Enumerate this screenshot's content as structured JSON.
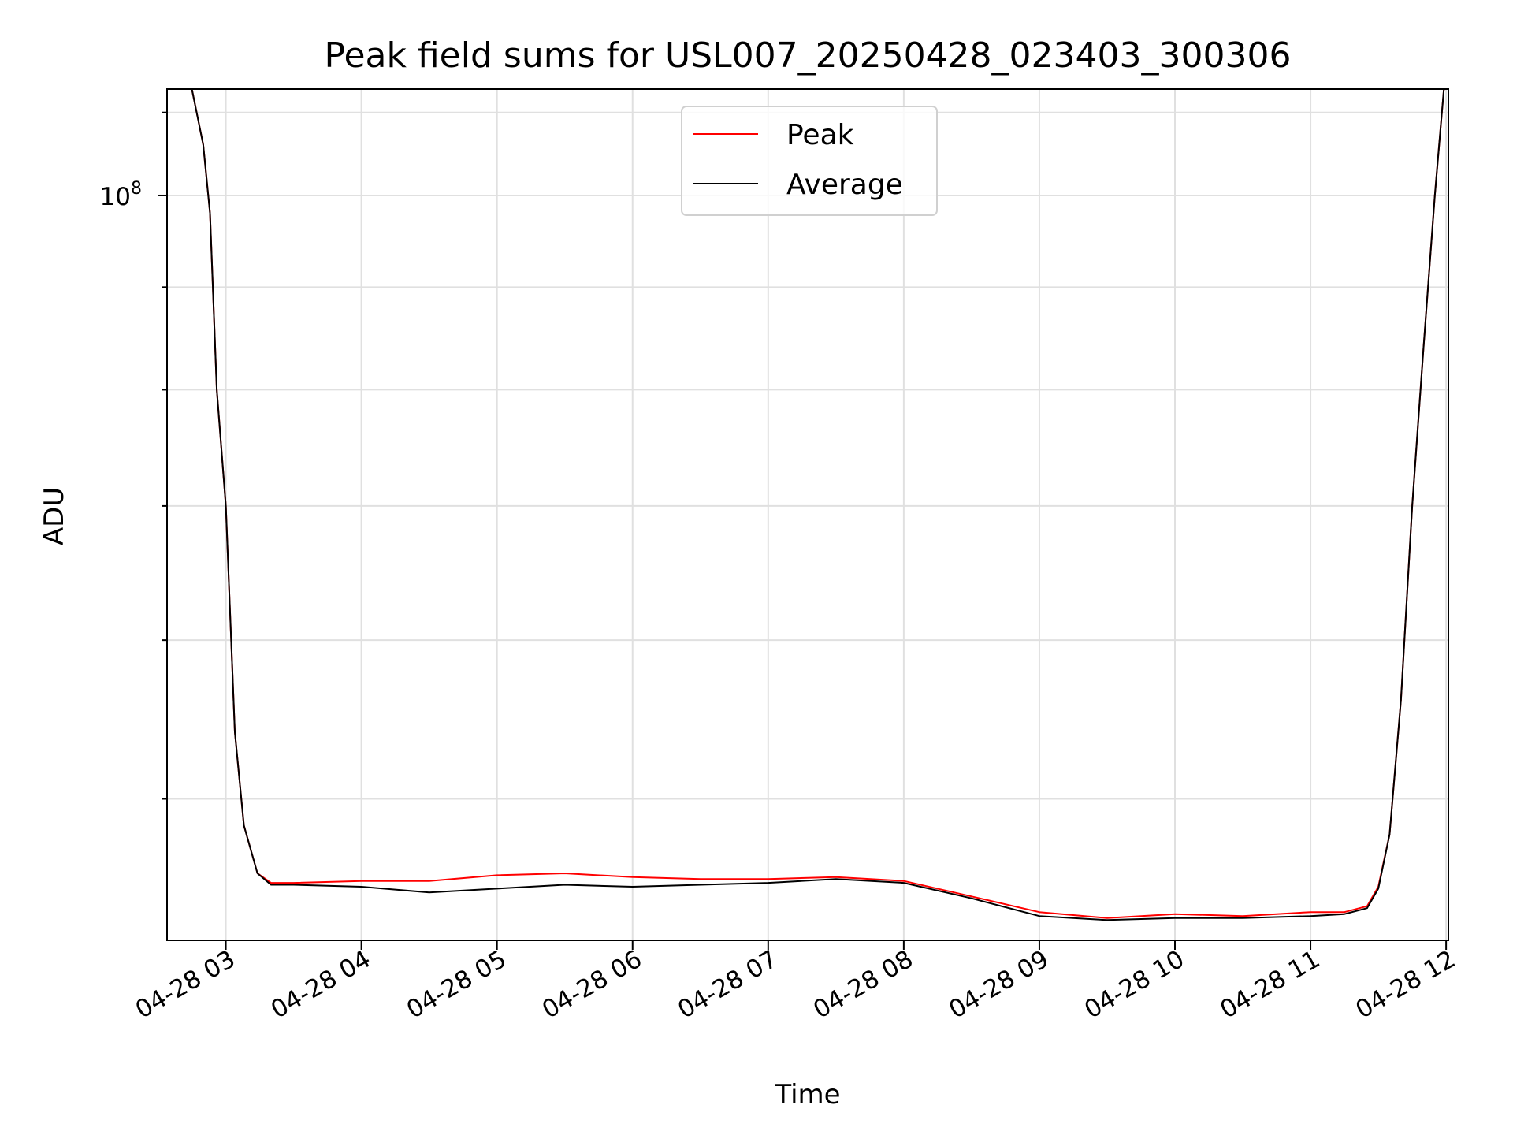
{
  "chart_data": {
    "type": "line",
    "title": "Peak field sums for USL007_20250428_023403_300306",
    "xlabel": "Time",
    "ylabel": "ADU",
    "y_scale": "log",
    "ylim": [
      42500000,
      113000000
    ],
    "xlim": [
      "2025-04-28 02:34",
      "2025-04-28 12:01"
    ],
    "grid": true,
    "legend_position": "upper center",
    "x_ticks": [
      {
        "t": "2025-04-28 03:00",
        "label": "04-28 03"
      },
      {
        "t": "2025-04-28 04:00",
        "label": "04-28 04"
      },
      {
        "t": "2025-04-28 05:00",
        "label": "04-28 05"
      },
      {
        "t": "2025-04-28 06:00",
        "label": "04-28 06"
      },
      {
        "t": "2025-04-28 07:00",
        "label": "04-28 07"
      },
      {
        "t": "2025-04-28 08:00",
        "label": "04-28 08"
      },
      {
        "t": "2025-04-28 09:00",
        "label": "04-28 09"
      },
      {
        "t": "2025-04-28 10:00",
        "label": "04-28 10"
      },
      {
        "t": "2025-04-28 11:00",
        "label": "04-28 11"
      },
      {
        "t": "2025-04-28 12:00",
        "label": "04-28 12"
      }
    ],
    "y_major_ticks": [
      {
        "value": 100000000,
        "base": "10",
        "exp": "8"
      }
    ],
    "y_minor_ticks": [
      50000000,
      60000000,
      70000000,
      80000000,
      90000000,
      110000000
    ],
    "series": [
      {
        "name": "Peak",
        "color": "#ff0000",
        "x": [
          "2025-04-28 02:34",
          "2025-04-28 02:45",
          "2025-04-28 02:50",
          "2025-04-28 02:53",
          "2025-04-28 02:56",
          "2025-04-28 03:00",
          "2025-04-28 03:04",
          "2025-04-28 03:08",
          "2025-04-28 03:14",
          "2025-04-28 03:20",
          "2025-04-28 03:30",
          "2025-04-28 04:00",
          "2025-04-28 04:30",
          "2025-04-28 05:00",
          "2025-04-28 05:30",
          "2025-04-28 06:00",
          "2025-04-28 06:30",
          "2025-04-28 07:00",
          "2025-04-28 07:30",
          "2025-04-28 08:00",
          "2025-04-28 08:30",
          "2025-04-28 09:00",
          "2025-04-28 09:30",
          "2025-04-28 10:00",
          "2025-04-28 10:30",
          "2025-04-28 11:00",
          "2025-04-28 11:15",
          "2025-04-28 11:25",
          "2025-04-28 11:30",
          "2025-04-28 11:35",
          "2025-04-28 11:40",
          "2025-04-28 11:45",
          "2025-04-28 11:50",
          "2025-04-28 11:55",
          "2025-04-28 11:59",
          "2025-04-28 12:01"
        ],
        "y": [
          113000000,
          113000000,
          106000000,
          98000000,
          80000000,
          70000000,
          54000000,
          48500000,
          45900000,
          45400000,
          45400000,
          45500000,
          45500000,
          45800000,
          45900000,
          45700000,
          45600000,
          45600000,
          45700000,
          45500000,
          44700000,
          43900000,
          43600000,
          43800000,
          43700000,
          43900000,
          43900000,
          44200000,
          45200000,
          48000000,
          56000000,
          70000000,
          84000000,
          100000000,
          113000000,
          113000000
        ]
      },
      {
        "name": "Average",
        "color": "#000000",
        "x": [
          "2025-04-28 02:34",
          "2025-04-28 02:45",
          "2025-04-28 02:50",
          "2025-04-28 02:53",
          "2025-04-28 02:56",
          "2025-04-28 03:00",
          "2025-04-28 03:04",
          "2025-04-28 03:08",
          "2025-04-28 03:14",
          "2025-04-28 03:20",
          "2025-04-28 03:30",
          "2025-04-28 04:00",
          "2025-04-28 04:30",
          "2025-04-28 05:00",
          "2025-04-28 05:30",
          "2025-04-28 06:00",
          "2025-04-28 06:30",
          "2025-04-28 07:00",
          "2025-04-28 07:30",
          "2025-04-28 08:00",
          "2025-04-28 08:30",
          "2025-04-28 09:00",
          "2025-04-28 09:30",
          "2025-04-28 10:00",
          "2025-04-28 10:30",
          "2025-04-28 11:00",
          "2025-04-28 11:15",
          "2025-04-28 11:25",
          "2025-04-28 11:30",
          "2025-04-28 11:35",
          "2025-04-28 11:40",
          "2025-04-28 11:45",
          "2025-04-28 11:50",
          "2025-04-28 11:55",
          "2025-04-28 11:59",
          "2025-04-28 12:01"
        ],
        "y": [
          113000000,
          113000000,
          106000000,
          98000000,
          80000000,
          70000000,
          54000000,
          48500000,
          45900000,
          45300000,
          45300000,
          45200000,
          44900000,
          45100000,
          45300000,
          45200000,
          45300000,
          45400000,
          45600000,
          45400000,
          44600000,
          43700000,
          43500000,
          43600000,
          43600000,
          43700000,
          43800000,
          44100000,
          45100000,
          48000000,
          56000000,
          70000000,
          84000000,
          100000000,
          113000000,
          113000000
        ]
      }
    ]
  }
}
